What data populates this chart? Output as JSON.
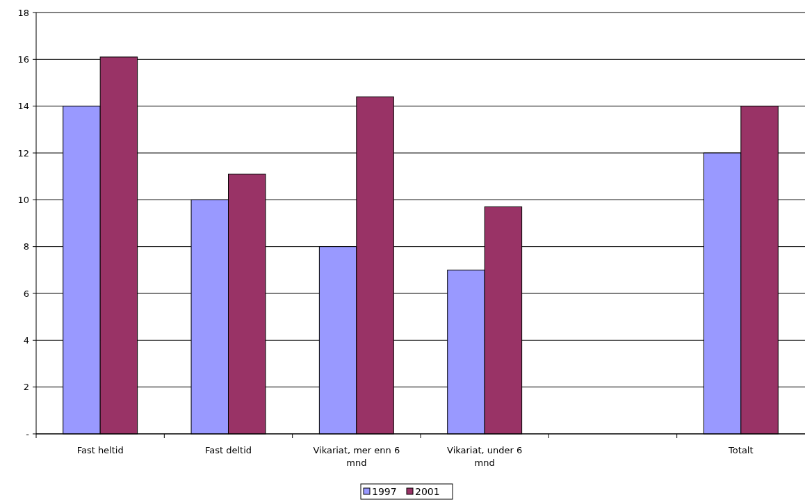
{
  "chart_data": {
    "type": "bar",
    "categories": [
      "Fast heltid",
      "Fast deltid",
      "Vikariat, mer enn 6 mnd",
      "Vikariat, under 6 mnd",
      null,
      "Totalt"
    ],
    "series": [
      {
        "name": "1997",
        "color": "#9999ff",
        "values": [
          14,
          10,
          8,
          7,
          null,
          12
        ]
      },
      {
        "name": "2001",
        "color": "#993366",
        "values": [
          16.1,
          11.1,
          14.4,
          9.7,
          null,
          14.0
        ]
      }
    ],
    "ylim": [
      0,
      18
    ],
    "yticks": [
      {
        "value": 0,
        "label": "-"
      },
      2,
      4,
      6,
      8,
      10,
      12,
      14,
      16,
      18
    ],
    "grid": "y",
    "legend": "bottom"
  }
}
